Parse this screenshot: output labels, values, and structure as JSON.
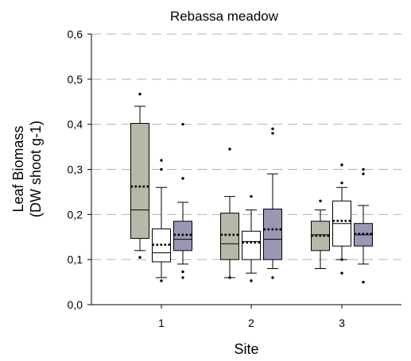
{
  "chart_data": {
    "type": "box",
    "title": "Rebassa meadow",
    "xlabel": "Site",
    "ylabel_line1": "Leaf Biomass",
    "ylabel_line2": "(DW shoot g-1)",
    "ylim": [
      0,
      0.6
    ],
    "yticks": [
      0,
      0.1,
      0.2,
      0.3,
      0.4,
      0.5,
      0.6
    ],
    "ytick_labels": [
      "0,0",
      "0,1",
      "0,2",
      "0,3",
      "0,4",
      "0,5",
      "0,6"
    ],
    "categories": [
      "1",
      "2",
      "3"
    ],
    "grid": "horizontal dashed",
    "series_colors": [
      "#b8b8a8",
      "#ffffff",
      "#9898b4"
    ],
    "series": [
      {
        "boxes": [
          {
            "min": 0.12,
            "q1": 0.147,
            "median": 0.21,
            "q3": 0.402,
            "max": 0.44,
            "mean": 0.262,
            "outliers": [
              0.467,
              0.105
            ]
          },
          {
            "min": 0.06,
            "q1": 0.1,
            "median": 0.135,
            "q3": 0.203,
            "max": 0.24,
            "mean": 0.155,
            "outliers": [
              0.345,
              0.06
            ]
          },
          {
            "min": 0.08,
            "q1": 0.12,
            "median": 0.155,
            "q3": 0.185,
            "max": 0.21,
            "mean": 0.153,
            "outliers": [
              0.23
            ]
          }
        ]
      },
      {
        "boxes": [
          {
            "min": 0.06,
            "q1": 0.095,
            "median": 0.115,
            "q3": 0.168,
            "max": 0.26,
            "mean": 0.133,
            "outliers": [
              0.32,
              0.3,
              0.053
            ]
          },
          {
            "min": 0.07,
            "q1": 0.1,
            "median": 0.14,
            "q3": 0.163,
            "max": 0.21,
            "mean": 0.138,
            "outliers": [
              0.24,
              0.053
            ]
          },
          {
            "min": 0.1,
            "q1": 0.13,
            "median": 0.18,
            "q3": 0.23,
            "max": 0.26,
            "mean": 0.186,
            "outliers": [
              0.31,
              0.27,
              0.1,
              0.07
            ]
          }
        ]
      },
      {
        "boxes": [
          {
            "min": 0.09,
            "q1": 0.12,
            "median": 0.145,
            "q3": 0.185,
            "max": 0.227,
            "mean": 0.155,
            "outliers": [
              0.4,
              0.28,
              0.073,
              0.06
            ]
          },
          {
            "min": 0.08,
            "q1": 0.1,
            "median": 0.145,
            "q3": 0.212,
            "max": 0.29,
            "mean": 0.167,
            "outliers": [
              0.39,
              0.38,
              0.06
            ]
          },
          {
            "min": 0.09,
            "q1": 0.13,
            "median": 0.155,
            "q3": 0.18,
            "max": 0.22,
            "mean": 0.157,
            "outliers": [
              0.3,
              0.29,
              0.05
            ]
          }
        ]
      }
    ]
  }
}
